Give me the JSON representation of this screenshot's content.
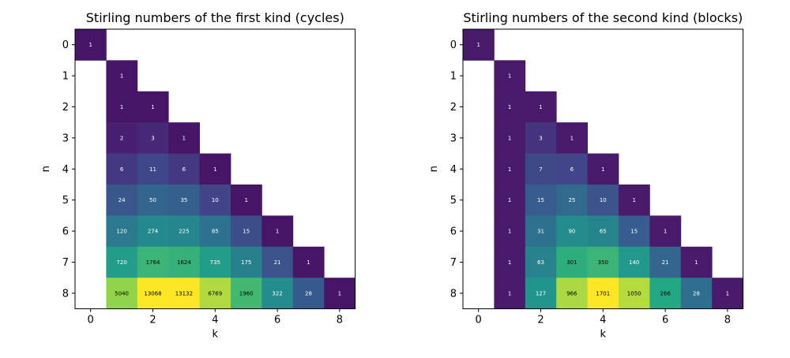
{
  "chart_data": [
    {
      "type": "heatmap",
      "title": "Stirling numbers of the first kind (cycles)",
      "xlabel": "k",
      "ylabel": "n",
      "x_ticks": [
        "0",
        "2",
        "4",
        "6",
        "8"
      ],
      "y_ticks": [
        "0",
        "1",
        "2",
        "3",
        "4",
        "5",
        "6",
        "7",
        "8"
      ],
      "colormap": "viridis",
      "grid": false,
      "rows": [
        [
          1
        ],
        [
          0,
          1
        ],
        [
          0,
          1,
          1
        ],
        [
          0,
          2,
          3,
          1
        ],
        [
          0,
          6,
          11,
          6,
          1
        ],
        [
          0,
          24,
          50,
          35,
          10,
          1
        ],
        [
          0,
          120,
          274,
          225,
          85,
          15,
          1
        ],
        [
          0,
          720,
          1764,
          1624,
          735,
          175,
          21,
          1
        ],
        [
          0,
          5040,
          13068,
          13132,
          6769,
          1960,
          322,
          28,
          1
        ]
      ]
    },
    {
      "type": "heatmap",
      "title": "Stirling numbers of the second kind (blocks)",
      "xlabel": "k",
      "ylabel": "n",
      "x_ticks": [
        "0",
        "2",
        "4",
        "6",
        "8"
      ],
      "y_ticks": [
        "0",
        "1",
        "2",
        "3",
        "4",
        "5",
        "6",
        "7",
        "8"
      ],
      "colormap": "viridis",
      "grid": false,
      "rows": [
        [
          1
        ],
        [
          0,
          1
        ],
        [
          0,
          1,
          1
        ],
        [
          0,
          1,
          3,
          1
        ],
        [
          0,
          1,
          7,
          6,
          1
        ],
        [
          0,
          1,
          15,
          25,
          10,
          1
        ],
        [
          0,
          1,
          31,
          90,
          65,
          15,
          1
        ],
        [
          0,
          1,
          63,
          301,
          350,
          140,
          21,
          1
        ],
        [
          0,
          1,
          127,
          966,
          1701,
          1050,
          266,
          28,
          1
        ]
      ]
    }
  ]
}
